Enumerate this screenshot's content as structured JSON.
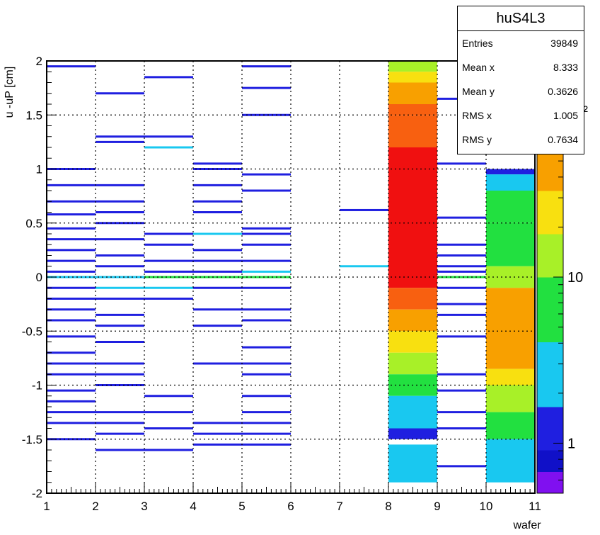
{
  "colors": {
    "blue": "#1f1fe0",
    "blue_dark": "#1010c8",
    "cyan": "#19c8f0",
    "green": "#22e040",
    "lime": "#a8f028",
    "yellow": "#f8e010",
    "orange": "#f8a000",
    "orange_red": "#f86010",
    "red": "#f01010",
    "violet": "#8010f0",
    "grid": "#000000"
  },
  "stats": {
    "title": "huS4L3",
    "rows": [
      {
        "label": "Entries",
        "value": "39849"
      },
      {
        "label": "Mean x",
        "value": "8.333"
      },
      {
        "label": "Mean y",
        "value": "0.3626"
      },
      {
        "label": "RMS x",
        "value": "1.005"
      },
      {
        "label": "RMS y",
        "value": "0.7634"
      }
    ]
  },
  "chart_data": {
    "type": "heatmap",
    "title": "huS4L3",
    "xlabel": "wafer",
    "ylabel": "u -uP [cm]",
    "xlim": [
      1,
      11
    ],
    "ylim": [
      -2,
      2
    ],
    "x_ticks": [
      "1",
      "2",
      "3",
      "4",
      "5",
      "6",
      "7",
      "8",
      "9",
      "10",
      "11"
    ],
    "y_ticks": [
      "-2",
      "-1.5",
      "-1",
      "-0.5",
      "0",
      "0.5",
      "1",
      "1.5",
      "2"
    ],
    "grid": true,
    "colorbar": {
      "scale": "log",
      "tick_labels": [
        "1",
        "10",
        "10²"
      ],
      "range": [
        0.5,
        200
      ]
    },
    "columns": [
      {
        "x": [
          1,
          2
        ],
        "segments": [
          {
            "y": 1.95,
            "c": "blue"
          },
          {
            "y": 1.0,
            "c": "blue"
          },
          {
            "y": 0.85,
            "c": "blue"
          },
          {
            "y": 0.7,
            "c": "blue"
          },
          {
            "y": 0.58,
            "c": "blue"
          },
          {
            "y": 0.45,
            "c": "blue"
          },
          {
            "y": 0.35,
            "c": "blue"
          },
          {
            "y": 0.25,
            "c": "blue"
          },
          {
            "y": 0.15,
            "c": "blue"
          },
          {
            "y": 0.05,
            "c": "blue"
          },
          {
            "y": 0.0,
            "c": "cyan"
          },
          {
            "y": -0.1,
            "c": "blue"
          },
          {
            "y": -0.2,
            "c": "blue"
          },
          {
            "y": -0.3,
            "c": "blue"
          },
          {
            "y": -0.4,
            "c": "blue"
          },
          {
            "y": -0.55,
            "c": "blue"
          },
          {
            "y": -0.7,
            "c": "blue"
          },
          {
            "y": -0.8,
            "c": "blue"
          },
          {
            "y": -0.9,
            "c": "blue"
          },
          {
            "y": -1.05,
            "c": "blue"
          },
          {
            "y": -1.15,
            "c": "blue"
          },
          {
            "y": -1.25,
            "c": "blue"
          },
          {
            "y": -1.35,
            "c": "blue"
          },
          {
            "y": -1.5,
            "c": "blue"
          }
        ]
      },
      {
        "x": [
          2,
          3
        ],
        "segments": [
          {
            "y": 1.7,
            "c": "blue"
          },
          {
            "y": 1.3,
            "c": "blue"
          },
          {
            "y": 1.25,
            "c": "blue"
          },
          {
            "y": 0.85,
            "c": "blue"
          },
          {
            "y": 0.7,
            "c": "blue"
          },
          {
            "y": 0.6,
            "c": "blue"
          },
          {
            "y": 0.5,
            "c": "blue"
          },
          {
            "y": 0.35,
            "c": "blue"
          },
          {
            "y": 0.2,
            "c": "blue"
          },
          {
            "y": 0.1,
            "c": "blue"
          },
          {
            "y": 0.0,
            "c": "cyan"
          },
          {
            "y": -0.1,
            "c": "cyan"
          },
          {
            "y": -0.2,
            "c": "blue"
          },
          {
            "y": -0.35,
            "c": "blue"
          },
          {
            "y": -0.45,
            "c": "blue"
          },
          {
            "y": -0.6,
            "c": "blue"
          },
          {
            "y": -0.8,
            "c": "blue"
          },
          {
            "y": -0.9,
            "c": "blue"
          },
          {
            "y": -1.0,
            "c": "blue"
          },
          {
            "y": -1.25,
            "c": "blue"
          },
          {
            "y": -1.35,
            "c": "blue"
          },
          {
            "y": -1.45,
            "c": "blue"
          },
          {
            "y": -1.6,
            "c": "blue"
          }
        ]
      },
      {
        "x": [
          3,
          4
        ],
        "segments": [
          {
            "y": 1.85,
            "c": "blue"
          },
          {
            "y": 1.3,
            "c": "blue"
          },
          {
            "y": 1.2,
            "c": "cyan"
          },
          {
            "y": 0.4,
            "c": "blue"
          },
          {
            "y": 0.3,
            "c": "blue"
          },
          {
            "y": 0.15,
            "c": "blue"
          },
          {
            "y": 0.05,
            "c": "blue"
          },
          {
            "y": 0.0,
            "c": "green"
          },
          {
            "y": -0.1,
            "c": "cyan"
          },
          {
            "y": -0.2,
            "c": "blue"
          },
          {
            "y": -1.1,
            "c": "blue"
          },
          {
            "y": -1.25,
            "c": "blue"
          },
          {
            "y": -1.4,
            "c": "blue"
          },
          {
            "y": -1.6,
            "c": "blue"
          }
        ]
      },
      {
        "x": [
          4,
          5
        ],
        "segments": [
          {
            "y": 1.05,
            "c": "blue"
          },
          {
            "y": 1.0,
            "c": "blue"
          },
          {
            "y": 0.85,
            "c": "blue"
          },
          {
            "y": 0.7,
            "c": "blue"
          },
          {
            "y": 0.6,
            "c": "blue"
          },
          {
            "y": 0.4,
            "c": "cyan"
          },
          {
            "y": 0.25,
            "c": "blue"
          },
          {
            "y": 0.15,
            "c": "blue"
          },
          {
            "y": 0.05,
            "c": "blue"
          },
          {
            "y": 0.0,
            "c": "green"
          },
          {
            "y": -0.1,
            "c": "blue"
          },
          {
            "y": -0.3,
            "c": "blue"
          },
          {
            "y": -0.45,
            "c": "blue"
          },
          {
            "y": -0.8,
            "c": "blue"
          },
          {
            "y": -1.35,
            "c": "blue"
          },
          {
            "y": -1.45,
            "c": "blue"
          },
          {
            "y": -1.55,
            "c": "blue"
          }
        ]
      },
      {
        "x": [
          5,
          6
        ],
        "segments": [
          {
            "y": 1.95,
            "c": "blue"
          },
          {
            "y": 1.75,
            "c": "blue"
          },
          {
            "y": 1.5,
            "c": "blue"
          },
          {
            "y": 0.95,
            "c": "blue"
          },
          {
            "y": 0.8,
            "c": "blue"
          },
          {
            "y": 0.45,
            "c": "blue"
          },
          {
            "y": 0.4,
            "c": "blue"
          },
          {
            "y": 0.3,
            "c": "blue"
          },
          {
            "y": 0.15,
            "c": "blue"
          },
          {
            "y": 0.05,
            "c": "cyan"
          },
          {
            "y": 0.0,
            "c": "green"
          },
          {
            "y": -0.1,
            "c": "blue"
          },
          {
            "y": -0.3,
            "c": "blue"
          },
          {
            "y": -0.4,
            "c": "blue"
          },
          {
            "y": -0.65,
            "c": "blue"
          },
          {
            "y": -0.8,
            "c": "blue"
          },
          {
            "y": -0.9,
            "c": "blue"
          },
          {
            "y": -1.1,
            "c": "blue"
          },
          {
            "y": -1.25,
            "c": "blue"
          },
          {
            "y": -1.35,
            "c": "blue"
          },
          {
            "y": -1.45,
            "c": "blue"
          },
          {
            "y": -1.55,
            "c": "blue"
          }
        ]
      },
      {
        "x": [
          7,
          8
        ],
        "segments": [
          {
            "y": 0.62,
            "c": "blue"
          },
          {
            "y": 0.1,
            "c": "cyan"
          }
        ]
      },
      {
        "x": [
          8,
          9
        ],
        "bands": [
          {
            "y0": 1.9,
            "y1": 2.0,
            "c": "lime"
          },
          {
            "y0": 1.8,
            "y1": 1.9,
            "c": "yellow"
          },
          {
            "y0": 1.6,
            "y1": 1.8,
            "c": "orange"
          },
          {
            "y0": 1.5,
            "y1": 1.6,
            "c": "orange_red"
          },
          {
            "y0": 1.2,
            "y1": 1.5,
            "c": "orange_red"
          },
          {
            "y0": -0.1,
            "y1": 1.2,
            "c": "red"
          },
          {
            "y0": -0.3,
            "y1": -0.1,
            "c": "orange_red"
          },
          {
            "y0": -0.5,
            "y1": -0.3,
            "c": "orange"
          },
          {
            "y0": -0.7,
            "y1": -0.5,
            "c": "yellow"
          },
          {
            "y0": -0.9,
            "y1": -0.7,
            "c": "lime"
          },
          {
            "y0": -1.1,
            "y1": -0.9,
            "c": "green"
          },
          {
            "y0": -1.4,
            "y1": -1.1,
            "c": "cyan"
          },
          {
            "y0": -1.5,
            "y1": -1.4,
            "c": "blue"
          },
          {
            "y0": -1.9,
            "y1": -1.55,
            "c": "cyan"
          }
        ]
      },
      {
        "x": [
          9,
          10
        ],
        "segments": [
          {
            "y": 1.65,
            "c": "blue"
          },
          {
            "y": 1.05,
            "c": "blue"
          },
          {
            "y": 0.55,
            "c": "blue"
          },
          {
            "y": 0.3,
            "c": "blue"
          },
          {
            "y": 0.2,
            "c": "blue"
          },
          {
            "y": 0.1,
            "c": "blue"
          },
          {
            "y": 0.05,
            "c": "blue"
          },
          {
            "y": 0.0,
            "c": "green"
          },
          {
            "y": -0.1,
            "c": "blue"
          },
          {
            "y": -0.25,
            "c": "blue"
          },
          {
            "y": -0.35,
            "c": "blue"
          },
          {
            "y": -0.55,
            "c": "blue"
          },
          {
            "y": -0.9,
            "c": "blue"
          },
          {
            "y": -1.05,
            "c": "blue"
          },
          {
            "y": -1.25,
            "c": "blue"
          },
          {
            "y": -1.4,
            "c": "blue"
          },
          {
            "y": -1.75,
            "c": "blue"
          }
        ]
      },
      {
        "x": [
          10,
          11
        ],
        "bands": [
          {
            "y0": 0.95,
            "y1": 1.0,
            "c": "blue"
          },
          {
            "y0": 0.8,
            "y1": 0.95,
            "c": "cyan"
          },
          {
            "y0": 0.5,
            "y1": 0.8,
            "c": "green"
          },
          {
            "y0": 0.1,
            "y1": 0.5,
            "c": "green"
          },
          {
            "y0": -0.1,
            "y1": 0.1,
            "c": "lime"
          },
          {
            "y0": -0.85,
            "y1": -0.1,
            "c": "orange"
          },
          {
            "y0": -1.0,
            "y1": -0.85,
            "c": "yellow"
          },
          {
            "y0": -1.25,
            "y1": -1.0,
            "c": "lime"
          },
          {
            "y0": -1.5,
            "y1": -1.25,
            "c": "green"
          },
          {
            "y0": -1.9,
            "y1": -1.5,
            "c": "cyan"
          }
        ]
      }
    ]
  }
}
